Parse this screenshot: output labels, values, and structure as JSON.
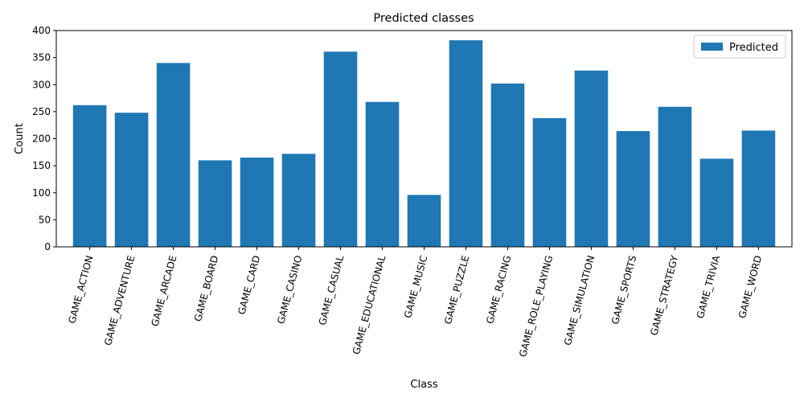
{
  "chart_data": {
    "type": "bar",
    "title": "Predicted classes",
    "xlabel": "Class",
    "ylabel": "Count",
    "ylim": [
      0,
      400
    ],
    "yticks": [
      0,
      50,
      100,
      150,
      200,
      250,
      300,
      350,
      400
    ],
    "legend_position": "top-right",
    "grid": false,
    "categories": [
      "GAME_ACTION",
      "GAME_ADVENTURE",
      "GAME_ARCADE",
      "GAME_BOARD",
      "GAME_CARD",
      "GAME_CASINO",
      "GAME_CASUAL",
      "GAME_EDUCATIONAL",
      "GAME_MUSIC",
      "GAME_PUZZLE",
      "GAME_RACING",
      "GAME_ROLE_PLAYING",
      "GAME_SIMULATION",
      "GAME_SPORTS",
      "GAME_STRATEGY",
      "GAME_TRIVIA",
      "GAME_WORD"
    ],
    "series": [
      {
        "name": "Predicted",
        "color": "#1f77b4",
        "values": [
          262,
          248,
          340,
          160,
          165,
          172,
          361,
          268,
          96,
          382,
          302,
          238,
          326,
          214,
          259,
          163,
          215
        ]
      }
    ]
  }
}
